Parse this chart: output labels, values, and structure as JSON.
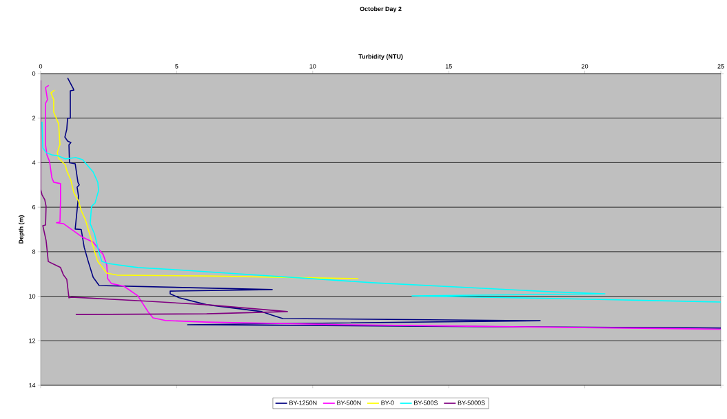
{
  "chart_data": {
    "type": "line",
    "title": "October Day 2",
    "xlabel": "Turbidity (NTU)",
    "ylabel": "Depth (m)",
    "xlim": [
      0,
      25
    ],
    "ylim": [
      14,
      0
    ],
    "xticks": [
      0,
      5,
      10,
      15,
      20,
      25
    ],
    "yticks": [
      0,
      2,
      4,
      6,
      8,
      10,
      12,
      14
    ],
    "grid": "y",
    "legend": "bottom",
    "marker": "none",
    "line_style": "solid",
    "series": [
      {
        "name": "BY-1250N",
        "color": "#000080",
        "x": [
          0.99,
          1.19,
          1.22,
          1.09,
          1.09,
          0.99,
          0.96,
          0.89,
          0.99,
          1.11,
          1.04,
          1.06,
          1.27,
          1.37,
          1.42,
          1.34,
          1.39,
          1.27,
          1.49,
          1.54,
          1.6,
          1.75,
          1.93,
          2.15,
          8.51,
          4.76,
          4.76,
          5.09,
          6.1,
          8.13,
          8.5,
          8.9,
          18.36,
          5.4,
          25
        ],
        "values": [
          0.19,
          0.65,
          0.74,
          0.77,
          2.0,
          2.0,
          2.5,
          2.85,
          3.03,
          3.1,
          3.2,
          4.0,
          4.05,
          4.88,
          5.0,
          5.1,
          5.5,
          6.98,
          7.0,
          7.35,
          7.8,
          8.44,
          9.15,
          9.52,
          9.7,
          9.77,
          9.89,
          10.07,
          10.38,
          10.69,
          10.85,
          11.0,
          11.1,
          11.28,
          11.43
        ]
      },
      {
        "name": "BY-500N",
        "color": "#ff00ff",
        "x": [
          0.3,
          0.18,
          0.25,
          0.18,
          0.18,
          0.23,
          0.33,
          0.41,
          0.48,
          0.73,
          0.73,
          0.71,
          0.58,
          0.84,
          1.54,
          1.93,
          2.3,
          2.43,
          2.46,
          2.6,
          3.06,
          3.57,
          3.95,
          4.13,
          4.58,
          6.1,
          11.17,
          25
        ],
        "values": [
          0.53,
          0.62,
          1.17,
          1.33,
          3.2,
          3.65,
          3.96,
          4.67,
          4.88,
          4.94,
          5.66,
          6.67,
          6.7,
          6.74,
          7.35,
          7.57,
          8.13,
          8.6,
          9.2,
          9.43,
          9.55,
          9.98,
          10.7,
          10.97,
          11.09,
          11.16,
          11.28,
          11.48
        ]
      },
      {
        "name": "BY-0",
        "color": "#ffff00",
        "x": [
          0.51,
          0.38,
          0.48,
          0.48,
          0.66,
          0.71,
          0.61,
          0.66,
          0.91,
          0.96,
          1.11,
          1.22,
          1.39,
          1.49,
          1.65,
          1.8,
          1.98,
          2.1,
          2.43,
          2.81,
          6.1,
          11.68
        ],
        "values": [
          0.74,
          0.87,
          1.17,
          1.73,
          2.26,
          3.18,
          3.55,
          3.8,
          4.11,
          4.36,
          4.79,
          5.35,
          5.72,
          6.15,
          6.58,
          7.2,
          7.97,
          8.44,
          8.96,
          9.05,
          9.09,
          9.21
        ]
      },
      {
        "name": "BY-500S",
        "color": "#00ffff",
        "x": [
          0.05,
          0.08,
          0.2,
          0.41,
          0.66,
          0.91,
          1.29,
          1.54,
          1.93,
          2.1,
          2.13,
          2.0,
          1.87,
          1.82,
          1.98,
          2.13,
          2.25,
          2.48,
          3.19,
          3.57,
          4.96,
          12.18,
          18.77,
          20.74,
          13.65,
          18.77,
          25
        ],
        "values": [
          2.16,
          3.34,
          3.55,
          3.65,
          3.7,
          3.83,
          3.77,
          3.86,
          4.42,
          4.88,
          5.25,
          5.81,
          5.96,
          6.74,
          7.2,
          7.97,
          8.44,
          8.53,
          8.65,
          8.71,
          8.81,
          9.39,
          9.8,
          9.89,
          9.98,
          10.1,
          10.26
        ]
      },
      {
        "name": "BY-5000S",
        "color": "#800080",
        "x": [
          0.0,
          0.0,
          0.05,
          0.15,
          0.2,
          0.18,
          0.08,
          0.2,
          0.28,
          0.48,
          0.73,
          0.84,
          0.96,
          1.04,
          1.14,
          3.57,
          6.1,
          9.07,
          6.1,
          1.29
        ],
        "values": [
          0.3,
          5.2,
          5.44,
          5.66,
          5.96,
          6.8,
          6.83,
          7.5,
          8.44,
          8.56,
          8.71,
          9.05,
          9.24,
          10.07,
          10.04,
          10.2,
          10.38,
          10.69,
          10.79,
          10.82
        ]
      }
    ]
  }
}
